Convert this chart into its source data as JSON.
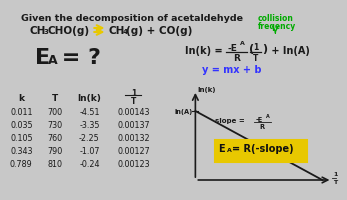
{
  "bg_color": "#c8c8c8",
  "title_text": "Given the decomposition of acetaldehyde",
  "table_data": [
    [
      0.011,
      700,
      -4.51,
      0.00143
    ],
    [
      0.035,
      730,
      -3.35,
      0.00137
    ],
    [
      0.105,
      760,
      -2.25,
      0.00132
    ],
    [
      0.343,
      790,
      -1.07,
      0.00127
    ],
    [
      0.789,
      810,
      -0.24,
      0.00123
    ]
  ],
  "yellow_color": "#e8c800",
  "green_color": "#00aa00",
  "white_color": "#ffffff",
  "blue_color": "#3333ff",
  "black_color": "#111111",
  "dark_color": "#1a1a1a",
  "arrow_yellow": "#ccaa00"
}
